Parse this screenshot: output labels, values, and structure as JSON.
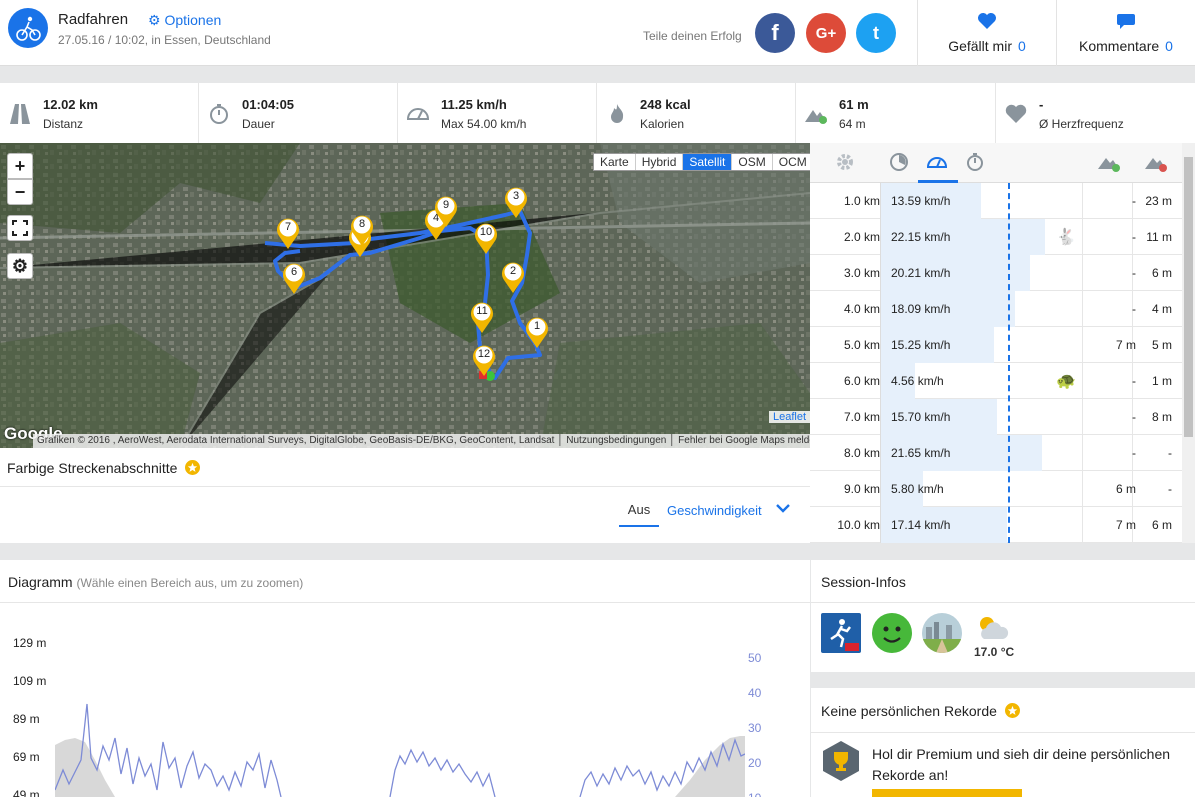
{
  "header": {
    "title": "Radfahren",
    "options_label": "Optionen",
    "meta": "27.05.16 / 10:02, in Essen, Deutschland",
    "share_label": "Teile deinen Erfolg",
    "facebook_glyph": "f",
    "googleplus_glyph": "G+",
    "twitter_glyph": "t",
    "likes_label": "Gefällt mir",
    "likes_count": "0",
    "comments_label": "Kommentare",
    "comments_count": "0"
  },
  "stats": [
    {
      "value": "12.02 km",
      "label": "Distanz",
      "icon": "road-icon"
    },
    {
      "value": "01:04:05",
      "label": "Dauer",
      "icon": "stopwatch-icon"
    },
    {
      "value": "11.25 km/h",
      "label": "Max 54.00 km/h",
      "icon": "speedometer-icon"
    },
    {
      "value": "248 kcal",
      "label": "Kalorien",
      "icon": "flame-icon"
    },
    {
      "value": "61 m",
      "label": "64 m",
      "icon": "elevation-icon"
    },
    {
      "value": "-",
      "label": "Ø Herzfrequenz",
      "icon": "heart-icon"
    }
  ],
  "map": {
    "zoom_in": "+",
    "zoom_out": "−",
    "fullscreen": "⛶",
    "settings": "⚙",
    "layers": [
      "Karte",
      "Hybrid",
      "Satellit",
      "OSM",
      "OCM"
    ],
    "active_layer": "Satellit",
    "google_logo": "Google",
    "attribution": "Grafiken © 2016 , AeroWest, Aerodata International Surveys, DigitalGlobe, GeoBasis-DE/BKG, GeoContent, Landsat │ Nutzungsbedingungen │ Fehler bei Google Maps melden",
    "leaflet": "Leaflet",
    "markers": [
      "1",
      "2",
      "3",
      "4",
      "5",
      "6",
      "7",
      "8",
      "9",
      "10",
      "11",
      "12"
    ]
  },
  "segments": {
    "title": "Farbige Streckenabschnitte",
    "tab_off": "Aus",
    "tab_speed": "Geschwindigkeit",
    "chevron": "⌄"
  },
  "splits": {
    "rows": [
      {
        "km": "1.0 km",
        "speed": "13.59 km/h",
        "speed_fraction": 0.61,
        "up": "-",
        "down": "23 m",
        "animal": ""
      },
      {
        "km": "2.0 km",
        "speed": "22.15 km/h",
        "speed_fraction": 1.0,
        "up": "-",
        "down": "11 m",
        "animal": "rabbit-icon"
      },
      {
        "km": "3.0 km",
        "speed": "20.21 km/h",
        "speed_fraction": 0.91,
        "up": "-",
        "down": "6 m",
        "animal": ""
      },
      {
        "km": "4.0 km",
        "speed": "18.09 km/h",
        "speed_fraction": 0.82,
        "up": "-",
        "down": "4 m",
        "animal": ""
      },
      {
        "km": "5.0 km",
        "speed": "15.25 km/h",
        "speed_fraction": 0.69,
        "up": "7 m",
        "down": "5 m",
        "animal": ""
      },
      {
        "km": "6.0 km",
        "speed": "4.56 km/h",
        "speed_fraction": 0.21,
        "up": "-",
        "down": "1 m",
        "animal": "turtle-icon"
      },
      {
        "km": "7.0 km",
        "speed": "15.70 km/h",
        "speed_fraction": 0.71,
        "up": "-",
        "down": "8 m",
        "animal": ""
      },
      {
        "km": "8.0 km",
        "speed": "21.65 km/h",
        "speed_fraction": 0.98,
        "up": "-",
        "down": "-",
        "animal": ""
      },
      {
        "km": "9.0 km",
        "speed": "5.80 km/h",
        "speed_fraction": 0.26,
        "up": "6 m",
        "down": "-",
        "animal": ""
      },
      {
        "km": "10.0 km",
        "speed": "17.14 km/h",
        "speed_fraction": 0.77,
        "up": "7 m",
        "down": "6 m",
        "animal": ""
      }
    ],
    "rabbit_glyph": "🐇",
    "turtle_glyph": "🐢"
  },
  "diagram": {
    "title": "Diagramm",
    "hint": "(Wähle einen Bereich aus, um zu zoomen)",
    "left_ticks": [
      "129 m",
      "109 m",
      "89 m",
      "69 m",
      "49 m"
    ],
    "right_ticks": [
      "50",
      "40",
      "30",
      "20",
      "10"
    ]
  },
  "session": {
    "title": "Session-Infos",
    "weather_temp": "17.0 °C"
  },
  "records": {
    "title": "Keine persönlichen Rekorde",
    "text": "Hol dir Premium und sieh dir deine persönlichen Rekorde an!"
  },
  "colors": {
    "accent": "#1a73e8",
    "route": "#2f6fe6",
    "marker": "#f2b600",
    "facebook": "#3b5998",
    "googleplus": "#dd4b39",
    "twitter": "#1da1f2"
  }
}
